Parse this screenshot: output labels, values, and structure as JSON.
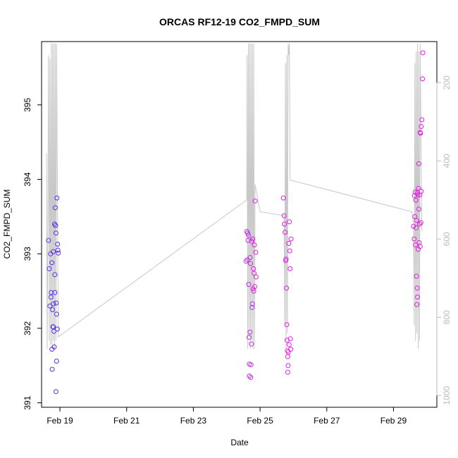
{
  "chart_data": {
    "type": "scatter",
    "title": "ORCAS RF12-19 CO2_FMPD_SUM",
    "xlabel": "Date",
    "ylabel": "CO2_FMPD_SUM",
    "x_ticks": [
      "Feb 19",
      "Feb 21",
      "Feb 23",
      "Feb 25",
      "Feb 27",
      "Feb 29"
    ],
    "x_tick_days": [
      19,
      21,
      23,
      25,
      27,
      29
    ],
    "xlim_days": [
      18.45,
      30.3
    ],
    "ylim": [
      390.94,
      395.85
    ],
    "y_ticks": [
      391,
      392,
      393,
      394,
      395
    ],
    "y2_ticks": [
      200,
      400,
      600,
      800,
      1000
    ],
    "y2lim": [
      1030,
      95
    ],
    "grid": false,
    "colors": {
      "axis": "#000000",
      "secondary_axis": "#bbbbbb",
      "altitude_line": "#c8c8c8",
      "flight_rf12": "#5b2ee6",
      "flight_late": "#e020e0"
    },
    "series": [
      {
        "color": "#5b2ee6",
        "points": [
          [
            18.66,
            393.18
          ],
          [
            18.68,
            392.8
          ],
          [
            18.7,
            392.3
          ],
          [
            18.72,
            393.0
          ],
          [
            18.73,
            392.42
          ],
          [
            18.74,
            392.48
          ],
          [
            18.76,
            392.88
          ],
          [
            18.76,
            391.72
          ],
          [
            18.77,
            391.45
          ],
          [
            18.78,
            392.25
          ],
          [
            18.79,
            392.02
          ],
          [
            18.8,
            392.02
          ],
          [
            18.8,
            393.03
          ],
          [
            18.81,
            392.33
          ],
          [
            18.82,
            391.96
          ],
          [
            18.83,
            391.75
          ],
          [
            18.84,
            393.4
          ],
          [
            18.85,
            392.72
          ],
          [
            18.85,
            392.48
          ],
          [
            18.86,
            393.62
          ],
          [
            18.87,
            393.38
          ],
          [
            18.88,
            393.28
          ],
          [
            18.88,
            391.15
          ],
          [
            18.89,
            392.34
          ],
          [
            18.9,
            391.56
          ],
          [
            18.9,
            392.19
          ],
          [
            18.91,
            393.75
          ],
          [
            18.92,
            391.99
          ],
          [
            18.93,
            393.13
          ],
          [
            18.94,
            393.05
          ],
          [
            18.95,
            393.01
          ]
        ]
      },
      {
        "color": "#c030e8",
        "points": [
          [
            24.58,
            392.9
          ],
          [
            24.6,
            393.3
          ],
          [
            24.62,
            392.92
          ],
          [
            24.63,
            393.28
          ],
          [
            24.64,
            393.18
          ],
          [
            24.65,
            393.25
          ],
          [
            24.66,
            392.59
          ],
          [
            24.67,
            391.88
          ],
          [
            24.68,
            391.36
          ],
          [
            24.68,
            391.52
          ],
          [
            24.7,
            392.95
          ],
          [
            24.7,
            391.95
          ],
          [
            24.71,
            392.87
          ],
          [
            24.72,
            391.34
          ],
          [
            24.73,
            391.51
          ],
          [
            24.74,
            391.79
          ],
          [
            24.75,
            393.17
          ],
          [
            24.76,
            392.28
          ],
          [
            24.77,
            392.33
          ],
          [
            24.78,
            393.2
          ]
        ]
      },
      {
        "color": "#e020e0",
        "points": [
          [
            24.78,
            393.2
          ],
          [
            24.79,
            392.53
          ],
          [
            24.8,
            392.8
          ],
          [
            24.81,
            392.5
          ],
          [
            24.82,
            392.74
          ],
          [
            24.83,
            393.12
          ],
          [
            24.84,
            392.56
          ],
          [
            24.85,
            393.71
          ],
          [
            24.87,
            393.02
          ],
          [
            24.88,
            392.69
          ],
          [
            25.7,
            393.75
          ],
          [
            25.72,
            393.51
          ],
          [
            25.73,
            393.4
          ],
          [
            25.75,
            393.29
          ],
          [
            25.77,
            392.91
          ],
          [
            25.78,
            392.93
          ],
          [
            25.79,
            392.54
          ],
          [
            25.8,
            392.05
          ],
          [
            25.81,
            391.84
          ],
          [
            25.82,
            391.7
          ],
          [
            25.83,
            391.62
          ],
          [
            25.83,
            391.41
          ],
          [
            25.84,
            391.5
          ],
          [
            25.85,
            391.68
          ],
          [
            25.86,
            393.14
          ],
          [
            25.87,
            391.78
          ],
          [
            25.88,
            393.43
          ],
          [
            25.89,
            393.04
          ],
          [
            25.9,
            392.8
          ],
          [
            25.91,
            391.86
          ],
          [
            25.92,
            391.72
          ],
          [
            25.93,
            393.2
          ],
          [
            29.6,
            393.37
          ],
          [
            29.62,
            393.2
          ],
          [
            29.63,
            393.78
          ],
          [
            29.64,
            393.5
          ],
          [
            29.65,
            393.83
          ],
          [
            29.66,
            393.12
          ],
          [
            29.67,
            393.72
          ],
          [
            29.68,
            393.35
          ],
          [
            29.69,
            392.7
          ],
          [
            29.69,
            393.45
          ],
          [
            29.7,
            392.32
          ],
          [
            29.71,
            392.54
          ],
          [
            29.72,
            392.42
          ],
          [
            29.72,
            393.82
          ],
          [
            29.73,
            393.79
          ],
          [
            29.74,
            393.06
          ],
          [
            29.75,
            393.88
          ],
          [
            29.76,
            394.21
          ],
          [
            29.76,
            393.6
          ],
          [
            29.77,
            393.15
          ],
          [
            29.78,
            393.4
          ],
          [
            29.79,
            393.79
          ],
          [
            29.8,
            394.63
          ],
          [
            29.8,
            393.1
          ],
          [
            29.81,
            394.62
          ],
          [
            29.82,
            393.42
          ],
          [
            29.83,
            394.71
          ],
          [
            29.83,
            393.84
          ],
          [
            29.85,
            394.8
          ],
          [
            29.87,
            395.35
          ],
          [
            29.88,
            395.7
          ]
        ]
      }
    ],
    "altitude_trace": [
      [
        18.6,
        380
      ],
      [
        18.62,
        880
      ],
      [
        18.64,
        520
      ],
      [
        18.66,
        130
      ],
      [
        18.68,
        860
      ],
      [
        18.7,
        140
      ],
      [
        18.72,
        870
      ],
      [
        18.74,
        100
      ],
      [
        18.76,
        880
      ],
      [
        18.78,
        100
      ],
      [
        18.8,
        860
      ],
      [
        18.82,
        100
      ],
      [
        18.84,
        880
      ],
      [
        18.86,
        100
      ],
      [
        18.88,
        860
      ],
      [
        18.9,
        100
      ],
      [
        18.95,
        850
      ],
      [
        24.6,
        500
      ],
      [
        24.61,
        130
      ],
      [
        24.63,
        880
      ],
      [
        24.65,
        100
      ],
      [
        24.67,
        850
      ],
      [
        24.69,
        100
      ],
      [
        24.71,
        880
      ],
      [
        24.73,
        100
      ],
      [
        24.75,
        860
      ],
      [
        24.77,
        100
      ],
      [
        24.79,
        880
      ],
      [
        24.81,
        100
      ],
      [
        24.83,
        880
      ],
      [
        24.85,
        460
      ],
      [
        25.0,
        530
      ],
      [
        25.72,
        540
      ],
      [
        25.74,
        820
      ],
      [
        25.76,
        150
      ],
      [
        25.78,
        880
      ],
      [
        25.8,
        130
      ],
      [
        25.82,
        840
      ],
      [
        25.84,
        100
      ],
      [
        25.86,
        130
      ],
      [
        25.88,
        100
      ],
      [
        25.9,
        450
      ],
      [
        25.95,
        450
      ],
      [
        29.55,
        530
      ],
      [
        29.6,
        560
      ],
      [
        29.62,
        820
      ],
      [
        29.64,
        150
      ],
      [
        29.66,
        860
      ],
      [
        29.68,
        120
      ],
      [
        29.7,
        840
      ],
      [
        29.72,
        100
      ],
      [
        29.74,
        880
      ],
      [
        29.76,
        120
      ],
      [
        29.78,
        860
      ],
      [
        29.8,
        100
      ],
      [
        29.85,
        580
      ]
    ]
  }
}
